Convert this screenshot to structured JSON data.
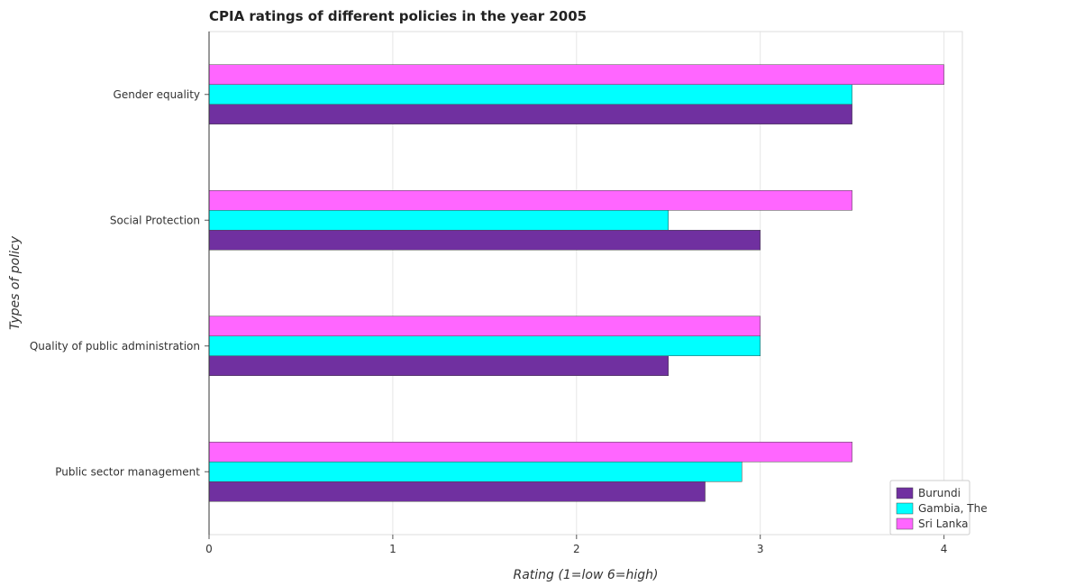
{
  "chart_data": {
    "type": "bar",
    "orientation": "horizontal",
    "title": "CPIA ratings of different policies in the year 2005",
    "xlabel": "Rating (1=low 6=high)",
    "ylabel": "Types of policy",
    "xlim": [
      0,
      4.1
    ],
    "xticks": [
      0,
      1,
      2,
      3,
      4
    ],
    "categories": [
      "Gender equality",
      "Social Protection",
      "Quality of public administration",
      "Public sector management"
    ],
    "series": [
      {
        "name": "Burundi",
        "color": "#7030a0",
        "values": [
          3.5,
          3.0,
          2.5,
          2.7
        ]
      },
      {
        "name": "Gambia, The",
        "color": "#00ffff",
        "values": [
          3.5,
          2.5,
          3.0,
          2.9
        ]
      },
      {
        "name": "Sri Lanka",
        "color": "#ff66ff",
        "values": [
          4.0,
          3.5,
          3.0,
          3.5
        ]
      }
    ],
    "grid": true,
    "legend_position": "bottom-right"
  }
}
